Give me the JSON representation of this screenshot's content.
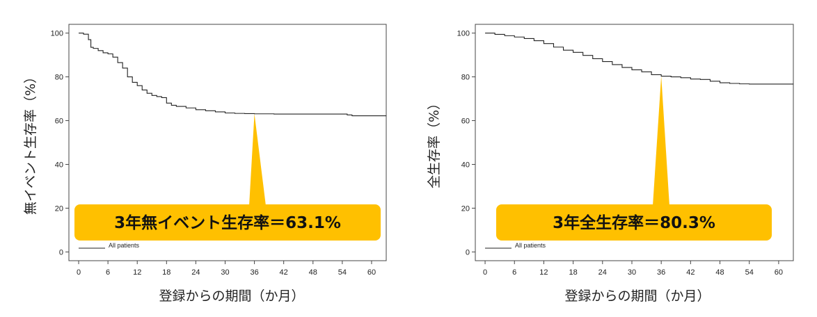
{
  "chart_data": [
    {
      "type": "line",
      "title": "",
      "xlabel": "登録からの期間（か月）",
      "ylabel": "無イベント生存率（%）",
      "xlim": [
        -2,
        63
      ],
      "ylim": [
        -4,
        104
      ],
      "xticks": [
        0,
        6,
        12,
        18,
        24,
        30,
        36,
        42,
        48,
        54,
        60
      ],
      "yticks": [
        0,
        20,
        40,
        60,
        80,
        100
      ],
      "series": [
        {
          "name": "All patients",
          "x": [
            0,
            1,
            2,
            2.5,
            3,
            4,
            5,
            6,
            7,
            8,
            9,
            10,
            11,
            12,
            13,
            14,
            15,
            16,
            17,
            18,
            19,
            20,
            22,
            24,
            26,
            28,
            30,
            32,
            34,
            36,
            40,
            46,
            50,
            54,
            55,
            56,
            63
          ],
          "y": [
            100,
            99.5,
            97,
            93.5,
            93,
            92,
            91,
            90.5,
            89,
            86.5,
            84,
            80,
            77.5,
            76,
            74,
            72.5,
            71.5,
            71,
            70.5,
            68,
            67,
            66.5,
            65.8,
            65,
            64.5,
            64,
            63.5,
            63.3,
            63.2,
            63.1,
            63,
            63,
            63,
            63,
            62.6,
            62.2,
            62.2
          ]
        }
      ],
      "legend": "bottom-left",
      "callout": {
        "text": "3年無イベント生存率＝63.1%",
        "x": 36,
        "y": 63.1
      }
    },
    {
      "type": "line",
      "title": "",
      "xlabel": "登録からの期間（か月）",
      "ylabel": "全生存率（%）",
      "xlim": [
        -2,
        63
      ],
      "ylim": [
        -4,
        104
      ],
      "xticks": [
        0,
        6,
        12,
        18,
        24,
        30,
        36,
        42,
        48,
        54,
        60
      ],
      "yticks": [
        0,
        20,
        40,
        60,
        80,
        100
      ],
      "series": [
        {
          "name": "All patients",
          "x": [
            0,
            2,
            4,
            6,
            8,
            10,
            12,
            14,
            16,
            18,
            20,
            22,
            24,
            26,
            28,
            30,
            32,
            34,
            36,
            38,
            40,
            42,
            44,
            46,
            48,
            50,
            52,
            54,
            56,
            60,
            63
          ],
          "y": [
            100,
            99.4,
            98.8,
            98.2,
            97.5,
            96.5,
            95.2,
            93.6,
            92.2,
            91.2,
            89.8,
            88.3,
            87,
            85.6,
            84.3,
            83.2,
            82.3,
            81,
            80.3,
            80,
            79.6,
            79,
            78.8,
            78,
            77.3,
            77,
            76.8,
            76.7,
            76.7,
            76.7,
            76.7
          ]
        }
      ],
      "legend": "bottom-left",
      "callout": {
        "text": "3年全生存率＝80.3%",
        "x": 36,
        "y": 80.3
      }
    }
  ],
  "colors": {
    "callout_fill": "#FFC000",
    "axis": "#444444",
    "line": "#222222"
  }
}
